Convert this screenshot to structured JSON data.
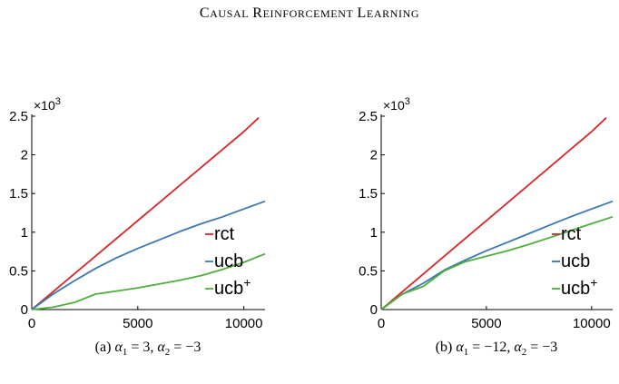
{
  "header": {
    "title": "Causal Reinforcement Learning",
    "words": [
      {
        "first": "C",
        "rest": "AUSAL"
      },
      {
        "first": "R",
        "rest": "EINFORCEMENT"
      },
      {
        "first": "L",
        "rest": "EARNING"
      }
    ]
  },
  "colors": {
    "rct": "#d62728",
    "ucb": "#3a77b0",
    "ucb_plus": "#4daf3a"
  },
  "chart_data": [
    {
      "type": "line",
      "caption": "(a) α1 = 3, α2 = −3",
      "caption_parts": {
        "label": "(a)",
        "a1": "3",
        "a2": "−3"
      },
      "xlim": [
        0,
        11000
      ],
      "ylim": [
        0,
        2500
      ],
      "xticks": [
        "0",
        "5000",
        "10000"
      ],
      "yticks": [
        "0",
        "0.5",
        "1",
        "1.5",
        "2",
        "2.5"
      ],
      "yscale_label": "×10",
      "yscale_exp": "3",
      "legend_position": "right",
      "series": [
        {
          "name": "rct",
          "x": [
            0,
            1000,
            2000,
            3000,
            4000,
            5000,
            6000,
            7000,
            8000,
            9000,
            10000,
            10700
          ],
          "y": [
            0,
            230,
            460,
            690,
            920,
            1150,
            1380,
            1610,
            1840,
            2070,
            2300,
            2480
          ]
        },
        {
          "name": "ucb",
          "x": [
            0,
            1000,
            2000,
            3000,
            4000,
            5000,
            6000,
            7000,
            8000,
            9000,
            10000,
            11000
          ],
          "y": [
            0,
            200,
            370,
            530,
            670,
            790,
            900,
            1010,
            1110,
            1200,
            1300,
            1400
          ]
        },
        {
          "name": "ucb+",
          "x": [
            0,
            1000,
            2000,
            3000,
            4000,
            5000,
            6000,
            7000,
            8000,
            9000,
            10000,
            11000
          ],
          "y": [
            0,
            30,
            90,
            200,
            240,
            280,
            330,
            380,
            440,
            520,
            610,
            720
          ]
        }
      ]
    },
    {
      "type": "line",
      "caption": "(b) α1 = −12, α2 = −3",
      "caption_parts": {
        "label": "(b)",
        "a1": "−12",
        "a2": "−3"
      },
      "xlim": [
        0,
        11000
      ],
      "ylim": [
        0,
        2500
      ],
      "xticks": [
        "0",
        "5000",
        "10000"
      ],
      "yticks": [
        "0",
        "0.5",
        "1",
        "1.5",
        "2",
        "2.5"
      ],
      "yscale_label": "×10",
      "yscale_exp": "3",
      "legend_position": "right",
      "series": [
        {
          "name": "rct",
          "x": [
            0,
            1000,
            2000,
            3000,
            4000,
            5000,
            6000,
            7000,
            8000,
            9000,
            10000,
            10700
          ],
          "y": [
            0,
            230,
            460,
            690,
            920,
            1150,
            1380,
            1610,
            1840,
            2070,
            2300,
            2480
          ]
        },
        {
          "name": "ucb",
          "x": [
            0,
            1000,
            2000,
            3000,
            4000,
            5000,
            6000,
            7000,
            8000,
            9000,
            10000,
            11000
          ],
          "y": [
            0,
            200,
            340,
            510,
            640,
            760,
            870,
            980,
            1090,
            1200,
            1300,
            1400
          ]
        },
        {
          "name": "ucb+",
          "x": [
            0,
            1000,
            2000,
            3000,
            4000,
            5000,
            6000,
            7000,
            8000,
            9000,
            10000,
            11000
          ],
          "y": [
            0,
            200,
            300,
            500,
            620,
            690,
            760,
            840,
            930,
            1020,
            1110,
            1200
          ]
        }
      ]
    }
  ]
}
